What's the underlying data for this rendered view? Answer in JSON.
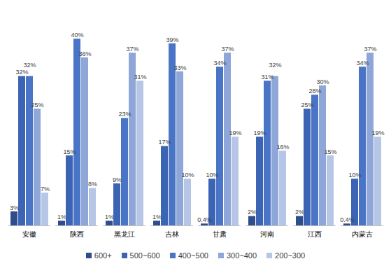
{
  "chart_data": {
    "type": "bar",
    "categories": [
      "安徽",
      "陕西",
      "黑龙江",
      "吉林",
      "甘肃",
      "河南",
      "江西",
      "内蒙古"
    ],
    "series": [
      {
        "name": "600+",
        "color": "#2F4D8C",
        "values": [
          3,
          1,
          1,
          1,
          0.4,
          2,
          2,
          0.4
        ],
        "value_labels": [
          "3%",
          "1%",
          "1%",
          "1%",
          "0.4%",
          "2%",
          "2%",
          "0.4%"
        ]
      },
      {
        "name": "500~600",
        "color": "#3C64B4",
        "values": [
          32,
          15,
          9,
          17,
          10,
          19,
          25,
          10
        ],
        "value_labels": [
          "32%",
          "15%",
          "9%",
          "17%",
          "10%",
          "19%",
          "25%",
          "10%"
        ]
      },
      {
        "name": "400~500",
        "color": "#4A74C6",
        "values": [
          32,
          40,
          23,
          39,
          34,
          31,
          28,
          34
        ],
        "value_labels": [
          "32%",
          "40%",
          "23%",
          "39%",
          "34%",
          "31%",
          "28%",
          "34%"
        ]
      },
      {
        "name": "300~400",
        "color": "#8EA7D8",
        "values": [
          25,
          36,
          37,
          33,
          37,
          32,
          30,
          37
        ],
        "value_labels": [
          "25%",
          "36%",
          "37%",
          "33%",
          "37%",
          "32%",
          "30%",
          "37%"
        ]
      },
      {
        "name": "200~300",
        "color": "#B6C6E6",
        "values": [
          7,
          8,
          31,
          10,
          19,
          16,
          15,
          19
        ],
        "value_labels": [
          "7%",
          "8%",
          "31%",
          "10%",
          "19%",
          "16%",
          "15%",
          "19%"
        ]
      }
    ],
    "ylim": [
      0,
      45
    ],
    "grid": false,
    "data_labels": true,
    "tick_labels": "x",
    "legend": "bottom"
  }
}
